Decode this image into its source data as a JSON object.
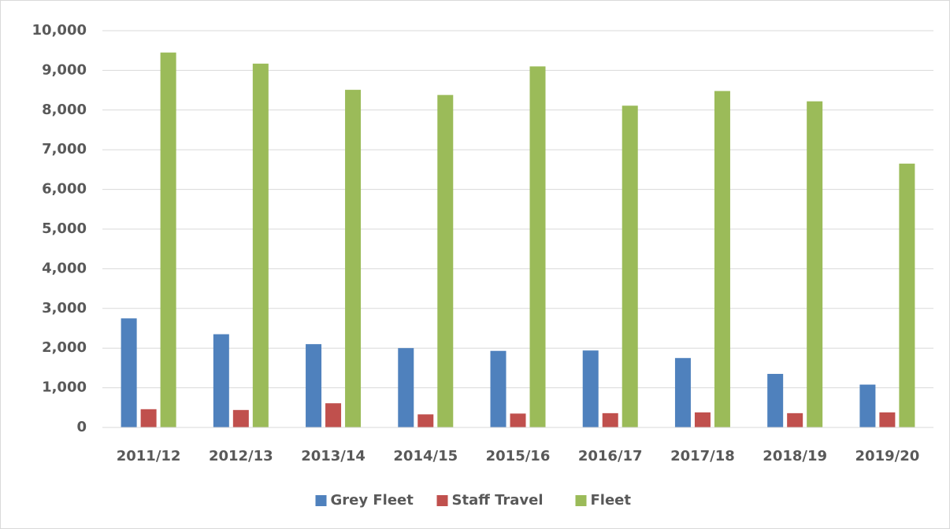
{
  "chart_data": {
    "type": "bar",
    "categories": [
      "2011/12",
      "2012/13",
      "2013/14",
      "2014/15",
      "2015/16",
      "2016/17",
      "2017/18",
      "2018/19",
      "2019/20"
    ],
    "series": [
      {
        "name": "Grey Fleet",
        "color": "#4f81bd",
        "values": [
          2750,
          2350,
          2100,
          2000,
          1930,
          1940,
          1750,
          1350,
          1080
        ]
      },
      {
        "name": "Staff Travel",
        "color": "#c0504d",
        "values": [
          460,
          440,
          610,
          330,
          350,
          360,
          380,
          360,
          380
        ]
      },
      {
        "name": "Fleet",
        "color": "#9bbb59",
        "values": [
          9450,
          9170,
          8510,
          8380,
          9100,
          8110,
          8480,
          8220,
          6650
        ]
      }
    ],
    "ylim": [
      0,
      10000
    ],
    "yticks": [
      0,
      {
        "value": 1000,
        "label": "1,000"
      },
      {
        "value": 2000,
        "label": "2,000"
      },
      {
        "value": 3000,
        "label": "3,000"
      },
      {
        "value": 4000,
        "label": "4,000"
      },
      {
        "value": 5000,
        "label": "5,000"
      },
      {
        "value": 6000,
        "label": "6,000"
      },
      {
        "value": 7000,
        "label": "7,000"
      },
      {
        "value": 8000,
        "label": "8,000"
      },
      {
        "value": 9000,
        "label": "9,000"
      },
      {
        "value": 10000,
        "label": "10,000"
      }
    ],
    "grid": true,
    "legend": "bottom"
  }
}
